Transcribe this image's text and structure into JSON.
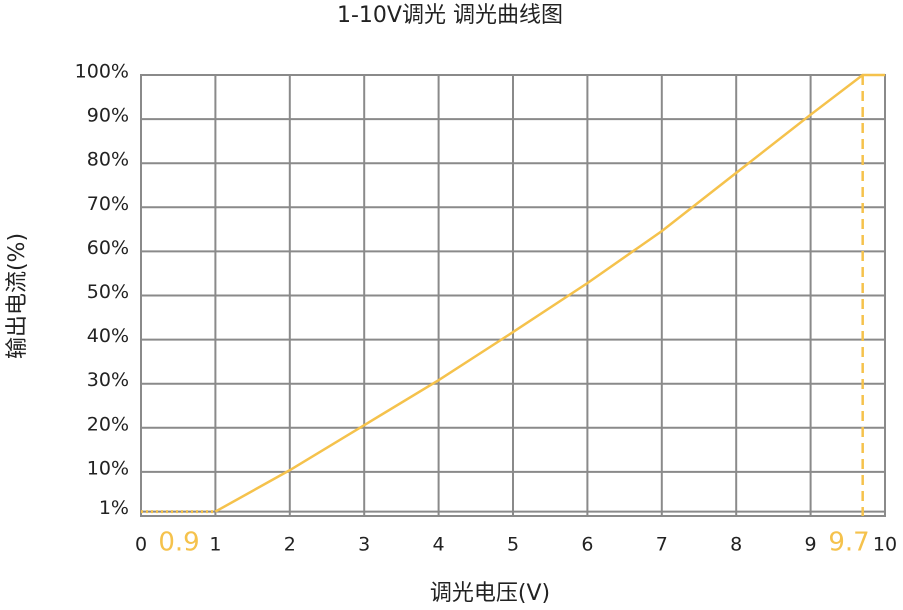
{
  "chart_data": {
    "type": "line",
    "title": "1-10V调光 调光曲线图",
    "x_label": "调光电压(V)",
    "y_label": "输出电流(%)",
    "xlim": [
      0,
      10
    ],
    "ylim": [
      0,
      100
    ],
    "xticks": [
      0,
      1,
      2,
      3,
      4,
      5,
      6,
      7,
      8,
      9,
      10
    ],
    "yticks": [
      {
        "value": 1,
        "label": "1%"
      },
      {
        "value": 10,
        "label": "10%"
      },
      {
        "value": 20,
        "label": "20%"
      },
      {
        "value": 30,
        "label": "30%"
      },
      {
        "value": 40,
        "label": "40%"
      },
      {
        "value": 50,
        "label": "50%"
      },
      {
        "value": 60,
        "label": "60%"
      },
      {
        "value": 70,
        "label": "70%"
      },
      {
        "value": 80,
        "label": "80%"
      },
      {
        "value": 90,
        "label": "90%"
      },
      {
        "value": 100,
        "label": "100%"
      }
    ],
    "grid": true,
    "annotations": [
      "0.9",
      "9.7"
    ],
    "series": [
      {
        "color": "#f5c24c",
        "style": "solid",
        "x": [
          1,
          2,
          3,
          4,
          5,
          6,
          7,
          8,
          9,
          9.7,
          10
        ],
        "values": [
          1,
          10.4,
          20.6,
          30.8,
          41.7,
          52.8,
          64.6,
          77.8,
          91,
          100,
          100
        ]
      },
      {
        "color": "#f5c24c",
        "style": "dotted",
        "x": [
          0,
          1
        ],
        "values": [
          1,
          1
        ]
      }
    ]
  }
}
